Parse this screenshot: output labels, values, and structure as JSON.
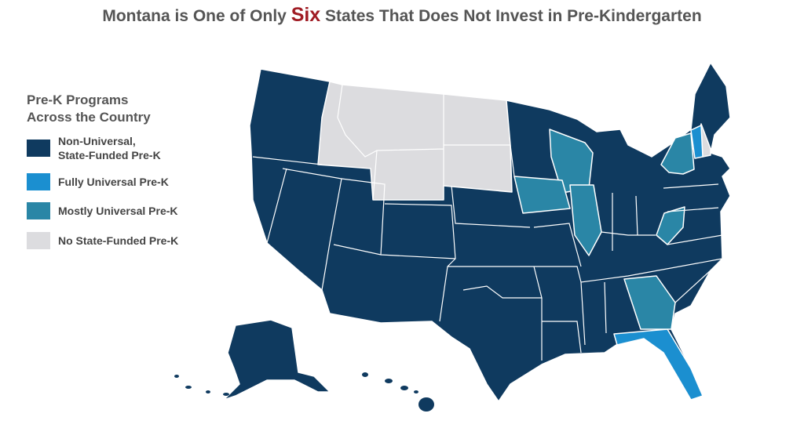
{
  "header": {
    "title": {
      "before": "Montana is One of Only ",
      "highlight": "Six",
      "after": " States That Does Not Invest in Pre-Kindergarten"
    }
  },
  "legend": {
    "heading": [
      "Pre-K Programs",
      "Across the Country"
    ],
    "items": [
      {
        "label": [
          "Non-Universal,",
          "State-Funded Pre-K"
        ],
        "color": "#0f3a5f"
      },
      {
        "label": [
          "Fully Universal Pre-K"
        ],
        "color": "#1b8fd0"
      },
      {
        "label": [
          "Mostly Universal Pre-K"
        ],
        "color": "#2a86a6"
      },
      {
        "label": [
          "No State-Funded Pre-K"
        ],
        "color": "#dcdcdf"
      }
    ]
  }
}
